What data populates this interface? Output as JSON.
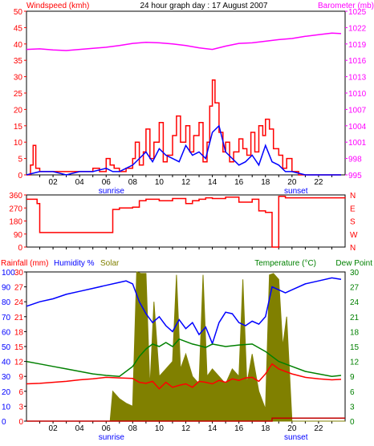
{
  "chart_data": [
    {
      "type": "line",
      "title": "24 hour graph day : 17 August 2007",
      "ylabel": "Windspeed (kmh)",
      "y2label": "Barometer (mb)",
      "ylim": [
        0,
        50
      ],
      "y2lim": [
        995,
        1025
      ],
      "yticks": [
        0,
        5,
        10,
        15,
        20,
        25,
        30,
        35,
        40,
        45,
        50
      ],
      "y2ticks": [
        995,
        998,
        1001,
        1004,
        1007,
        1010,
        1013,
        1016,
        1019,
        1022,
        1025
      ],
      "xlim": [
        0,
        24
      ],
      "xticks": [
        "02",
        "04",
        "06",
        "08",
        "10",
        "12",
        "14",
        "16",
        "18",
        "20",
        "22"
      ],
      "sunrise_label": "sunrise",
      "sunset_label": "sunset",
      "sunrise_hour": 6.4,
      "sunset_hour": 20.3,
      "colors": {
        "gust": "#ff0000",
        "wind": "#0000ff",
        "barometer": "#ff00ff",
        "axis_left": "#ff0000",
        "axis_right": "#ff00ff"
      },
      "series": [
        {
          "key": "barometer",
          "x": [
            0,
            1,
            2,
            3,
            4,
            5,
            6,
            7,
            8,
            9,
            10,
            11,
            12,
            13,
            14,
            15,
            16,
            17,
            18,
            19,
            20,
            21,
            22,
            23,
            23.7
          ],
          "values": [
            1018.0,
            1018.1,
            1017.9,
            1017.8,
            1018.0,
            1018.2,
            1018.4,
            1018.7,
            1019.1,
            1019.3,
            1019.2,
            1019.0,
            1018.7,
            1018.3,
            1018.0,
            1018.6,
            1019.1,
            1019.2,
            1019.5,
            1019.8,
            1020.0,
            1020.4,
            1020.7,
            1021.0,
            1020.9
          ]
        },
        {
          "key": "gust",
          "x": [
            0,
            0.3,
            0.5,
            0.7,
            1,
            2,
            3,
            4,
            5,
            5.5,
            6,
            6.3,
            6.6,
            7,
            7.5,
            8,
            8.2,
            8.5,
            8.8,
            9,
            9.3,
            9.6,
            10,
            10.3,
            10.6,
            11,
            11.3,
            11.6,
            12,
            12.3,
            12.6,
            13,
            13.3,
            13.6,
            13.8,
            14,
            14.2,
            14.5,
            14.8,
            15,
            15.3,
            15.6,
            16,
            16.3,
            16.6,
            16.9,
            17.2,
            17.5,
            17.8,
            18,
            18.3,
            18.6,
            19,
            19.3,
            19.6,
            20,
            20.5,
            21,
            22,
            23,
            23.7
          ],
          "values": [
            0,
            3,
            9,
            2,
            1,
            1,
            1,
            1,
            2,
            1,
            5,
            3,
            2,
            1,
            2,
            5,
            10,
            3,
            7,
            14,
            5,
            10,
            16,
            4,
            6,
            12,
            18,
            10,
            15,
            7,
            12,
            16,
            4,
            10,
            21,
            29,
            22,
            13,
            7,
            10,
            4,
            7,
            11,
            8,
            6,
            13,
            7,
            15,
            12,
            17,
            14,
            8,
            6,
            2,
            5,
            1,
            0,
            0,
            0,
            0,
            0
          ]
        },
        {
          "key": "wind",
          "x": [
            0,
            1,
            2,
            3,
            4,
            5,
            6,
            6.5,
            7,
            7.5,
            8,
            8.5,
            9,
            9.5,
            10,
            10.5,
            11,
            11.5,
            12,
            12.5,
            13,
            13.5,
            14,
            14.5,
            15,
            15.5,
            16,
            16.5,
            17,
            17.5,
            18,
            18.5,
            19,
            19.5,
            20,
            21,
            22,
            23,
            23.7
          ],
          "values": [
            0,
            1,
            1,
            0,
            1,
            1,
            2,
            1,
            1,
            2,
            3,
            5,
            7,
            4,
            8,
            6,
            5,
            4,
            9,
            6,
            7,
            5,
            13,
            15,
            7,
            5,
            3,
            4,
            6,
            3,
            9,
            4,
            3,
            1,
            1,
            0,
            0,
            0,
            0
          ]
        }
      ]
    },
    {
      "type": "line",
      "ylim": [
        0,
        360
      ],
      "yticks": [
        0,
        90,
        180,
        270,
        360
      ],
      "y2ticks": [
        "N",
        "W",
        "S",
        "E",
        "N"
      ],
      "xlim": [
        0,
        24
      ],
      "colors": {
        "direction": "#ff0000",
        "axis": "#ff0000"
      },
      "series": [
        {
          "key": "direction",
          "x": [
            0,
            0.5,
            0.8,
            1,
            6,
            6.5,
            7,
            8,
            8.5,
            9,
            10,
            11,
            12,
            12.5,
            13,
            13.5,
            14,
            15,
            16,
            17,
            17.5,
            18,
            18.5,
            19,
            19.5,
            24
          ],
          "values": [
            330,
            330,
            300,
            100,
            100,
            260,
            270,
            275,
            320,
            330,
            320,
            335,
            300,
            320,
            330,
            340,
            335,
            345,
            310,
            330,
            250,
            240,
            0,
            350,
            340,
            345
          ]
        }
      ]
    },
    {
      "type": "line",
      "ylabel": "Rainfall (mm)",
      "ylabel2": "Humidity %",
      "ylabel3": "Solar",
      "y2label": "Temperature (°C)",
      "y3label": "Dew Point",
      "ylim": [
        0,
        100
      ],
      "y2lim": [
        0,
        30
      ],
      "yticks": [
        0,
        10,
        20,
        30,
        40,
        50,
        60,
        70,
        80,
        90,
        100
      ],
      "yticks_inner": [
        0,
        3,
        6,
        9,
        12,
        15,
        18,
        21,
        24,
        27,
        30
      ],
      "y2ticks": [
        0,
        3,
        6,
        9,
        12,
        15,
        18,
        21,
        24,
        27,
        30
      ],
      "xlim": [
        0,
        24
      ],
      "sunrise_label": "sunrise",
      "sunset_label": "sunset",
      "colors": {
        "humidity": "#0000ff",
        "temperature": "#ff0000",
        "dewpoint": "#008000",
        "solar": "#808000",
        "rainfall": "#c00000",
        "axis_left": "#ff0000",
        "axis_right": "#008000"
      },
      "series": [
        {
          "key": "humidity",
          "x": [
            0,
            1,
            2,
            3,
            4,
            5,
            6,
            7,
            7.5,
            8,
            8.5,
            9,
            9.5,
            10,
            10.5,
            11,
            11.5,
            12,
            12.5,
            13,
            13.5,
            14,
            14.5,
            15,
            15.5,
            16,
            16.5,
            17,
            17.5,
            18,
            18.5,
            19,
            19.5,
            20,
            21,
            22,
            23,
            23.7
          ],
          "values": [
            77,
            80,
            82,
            85,
            87,
            89,
            91,
            93,
            94,
            92,
            80,
            72,
            66,
            70,
            64,
            60,
            68,
            62,
            66,
            58,
            63,
            52,
            66,
            73,
            72,
            66,
            64,
            67,
            65,
            70,
            90,
            88,
            86,
            88,
            92,
            94,
            96,
            95
          ]
        },
        {
          "key": "dewpoint",
          "x": [
            0,
            1,
            2,
            3,
            4,
            5,
            6,
            7,
            8,
            8.5,
            9,
            9.5,
            10,
            10.5,
            11,
            11.5,
            12,
            12.5,
            13,
            13.5,
            14,
            15,
            16,
            17,
            18,
            19,
            20,
            21,
            22,
            23,
            23.7
          ],
          "values": [
            12,
            11.5,
            11,
            10.5,
            10,
            9.5,
            9.2,
            9.0,
            11,
            13,
            14.5,
            15.5,
            15,
            15.8,
            15,
            16.5,
            16,
            15.5,
            15.2,
            14.8,
            15.5,
            15,
            15.3,
            15.5,
            14,
            12,
            11,
            10,
            9.5,
            9,
            9.2
          ]
        },
        {
          "key": "temperature",
          "x": [
            0,
            1,
            2,
            3,
            4,
            5,
            6,
            7,
            8,
            8.5,
            9,
            9.5,
            10,
            10.5,
            11,
            11.5,
            12,
            12.5,
            13,
            13.5,
            14,
            14.5,
            15,
            15.5,
            16,
            16.5,
            17,
            17.5,
            18,
            18.5,
            19,
            20,
            21,
            22,
            23,
            23.7
          ],
          "values": [
            7.5,
            7.6,
            7.8,
            8.0,
            8.3,
            8.5,
            8.8,
            8.7,
            8.6,
            7.8,
            7.6,
            8.0,
            6.5,
            7.8,
            6.8,
            7.2,
            7.5,
            6.8,
            8.0,
            7.8,
            7.5,
            8.2,
            7.8,
            8.5,
            8.2,
            8.7,
            8.8,
            8.0,
            9.5,
            11.5,
            10.5,
            9.5,
            8.8,
            8.5,
            8.3,
            8.4
          ]
        },
        {
          "key": "solar",
          "x": [
            0,
            6.3,
            6.5,
            7,
            7.5,
            8,
            8.3,
            8.6,
            9,
            9.3,
            9.6,
            10,
            10.5,
            11,
            11.3,
            11.6,
            12,
            12.5,
            13,
            13.3,
            13.6,
            14,
            14.5,
            15,
            15.5,
            16,
            16.3,
            16.6,
            17,
            17.5,
            18,
            18.3,
            18.6,
            19,
            19.3,
            19.6,
            20,
            24
          ],
          "values": [
            0,
            0,
            20,
            15,
            12,
            10,
            100,
            99,
            99,
            22,
            80,
            30,
            35,
            40,
            98,
            35,
            45,
            30,
            25,
            98,
            30,
            35,
            30,
            25,
            35,
            30,
            95,
            25,
            45,
            20,
            8,
            98,
            99,
            95,
            50,
            70,
            0,
            0
          ]
        },
        {
          "key": "rainfall",
          "x": [
            0,
            18.4,
            18.5,
            24
          ],
          "values": [
            0,
            0,
            2,
            2
          ]
        }
      ]
    }
  ]
}
